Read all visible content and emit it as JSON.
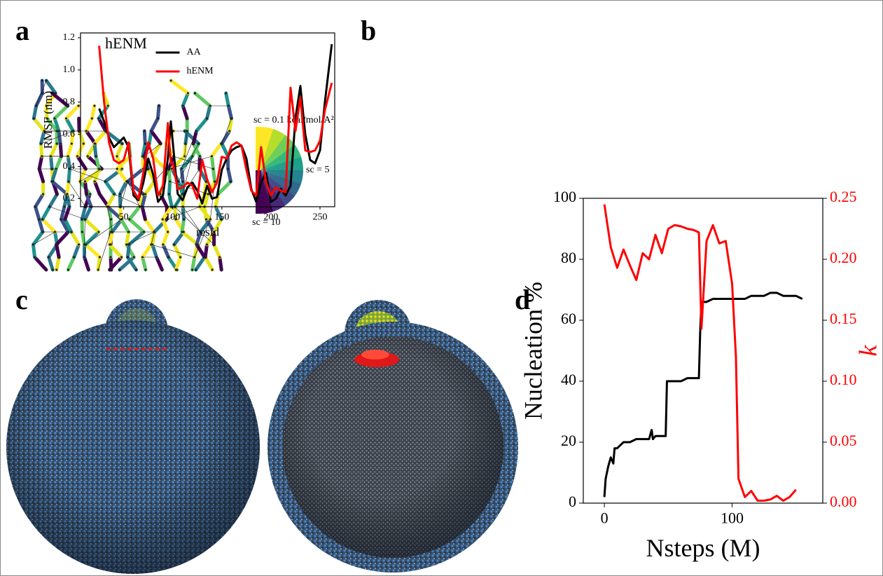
{
  "panel_labels": [
    "a",
    "b",
    "c",
    "d"
  ],
  "panel_a": {
    "title": "hENM",
    "colorbar_labels": [
      "sc = 0.1 kcal/mol/A²",
      "sc = 5",
      "sc = 10"
    ]
  },
  "chart_data": [
    {
      "type": "line",
      "xlabel": "resid",
      "ylabel": "RMSF (nm)",
      "x": [
        25,
        30,
        35,
        40,
        45,
        50,
        55,
        60,
        65,
        70,
        75,
        80,
        85,
        90,
        95,
        98,
        100,
        105,
        110,
        115,
        120,
        125,
        130,
        135,
        140,
        145,
        150,
        155,
        160,
        165,
        170,
        175,
        180,
        185,
        190,
        195,
        200,
        205,
        210,
        215,
        220,
        225,
        230,
        235,
        240,
        245,
        250,
        255,
        262
      ],
      "series": [
        {
          "name": "AA",
          "color": "#000000",
          "values": [
            0.76,
            0.68,
            0.58,
            0.52,
            0.55,
            0.58,
            0.52,
            0.22,
            0.19,
            0.3,
            0.45,
            0.35,
            0.18,
            0.22,
            0.45,
            0.68,
            0.55,
            0.23,
            0.19,
            0.27,
            0.3,
            0.25,
            0.17,
            0.28,
            0.2,
            0.21,
            0.38,
            0.45,
            0.5,
            0.52,
            0.53,
            0.45,
            0.26,
            0.18,
            0.3,
            0.36,
            0.18,
            0.2,
            0.26,
            0.22,
            0.28,
            0.7,
            0.9,
            0.6,
            0.44,
            0.42,
            0.5,
            0.8,
            1.16
          ]
        },
        {
          "name": "hENM",
          "color": "#ff0000",
          "values": [
            1.15,
            0.8,
            0.55,
            0.44,
            0.42,
            0.44,
            0.55,
            0.25,
            0.2,
            0.36,
            0.55,
            0.45,
            0.22,
            0.28,
            0.67,
            0.42,
            0.42,
            0.26,
            0.27,
            0.3,
            0.28,
            0.2,
            0.44,
            0.32,
            0.24,
            0.3,
            0.46,
            0.45,
            0.53,
            0.55,
            0.53,
            0.38,
            0.25,
            0.22,
            0.52,
            0.3,
            0.22,
            0.27,
            0.25,
            0.24,
            0.89,
            0.62,
            0.83,
            0.5,
            0.49,
            0.5,
            0.56,
            0.75,
            0.92
          ]
        }
      ],
      "xlim": [
        6,
        265
      ],
      "xticks": [
        50,
        100,
        150,
        200,
        250
      ],
      "ylim": [
        0.15,
        1.23
      ],
      "yticks": [
        0.2,
        0.4,
        0.6,
        0.8,
        {
          "value": 1,
          "label": "1.0"
        },
        1.2
      ],
      "legend": "upper center"
    },
    {
      "type": "line",
      "xlabel": "Nsteps (M)",
      "ylabel": "Nucleation %",
      "y2label": "k",
      "series": [
        {
          "name": "Nucleation %",
          "color": "#000000",
          "x": [
            0,
            1,
            3,
            5,
            7,
            8,
            10,
            15,
            20,
            25,
            30,
            35,
            37,
            38,
            40,
            45,
            48,
            49,
            50,
            55,
            60,
            65,
            70,
            74,
            75,
            76,
            80,
            85,
            90,
            95,
            100,
            105,
            110,
            115,
            120,
            125,
            130,
            135,
            140,
            145,
            150,
            155
          ],
          "values": [
            2,
            8,
            12,
            15,
            13,
            18,
            18,
            20,
            20,
            21,
            21,
            21,
            24,
            21,
            22,
            22,
            22,
            40,
            40,
            40,
            40,
            41,
            41,
            41,
            56,
            66,
            66,
            67,
            67,
            67,
            67,
            67,
            67,
            68,
            68,
            68,
            69,
            69,
            68,
            68,
            68,
            67
          ]
        },
        {
          "name": "k",
          "color": "#ff0000",
          "axis": "y2",
          "x": [
            0,
            5,
            10,
            15,
            20,
            25,
            30,
            35,
            40,
            45,
            50,
            55,
            60,
            65,
            70,
            74,
            76,
            80,
            85,
            90,
            95,
            100,
            103,
            105,
            110,
            115,
            120,
            125,
            130,
            135,
            140,
            145,
            150
          ],
          "values": [
            0.245,
            0.21,
            0.193,
            0.208,
            0.195,
            0.183,
            0.205,
            0.2,
            0.22,
            0.205,
            0.225,
            0.228,
            0.227,
            0.225,
            0.224,
            0.222,
            0.143,
            0.215,
            0.228,
            0.213,
            0.215,
            0.18,
            0.12,
            0.02,
            0.005,
            0.01,
            0.002,
            0.002,
            0.003,
            0.006,
            0.002,
            0.005,
            0.011
          ]
        }
      ],
      "xlim": [
        -16.5,
        171
      ],
      "xticks": [
        0,
        100
      ],
      "ylim": [
        0,
        100
      ],
      "yticks": [
        0,
        20,
        40,
        60,
        80,
        100
      ],
      "y2lim": [
        0,
        0.25
      ],
      "y2ticks": [
        {
          "value": 0,
          "label": "0.00"
        },
        0.05,
        {
          "value": 0.1,
          "label": "0.10"
        },
        0.15,
        {
          "value": 0.2,
          "label": "0.20"
        },
        0.25
      ]
    }
  ]
}
